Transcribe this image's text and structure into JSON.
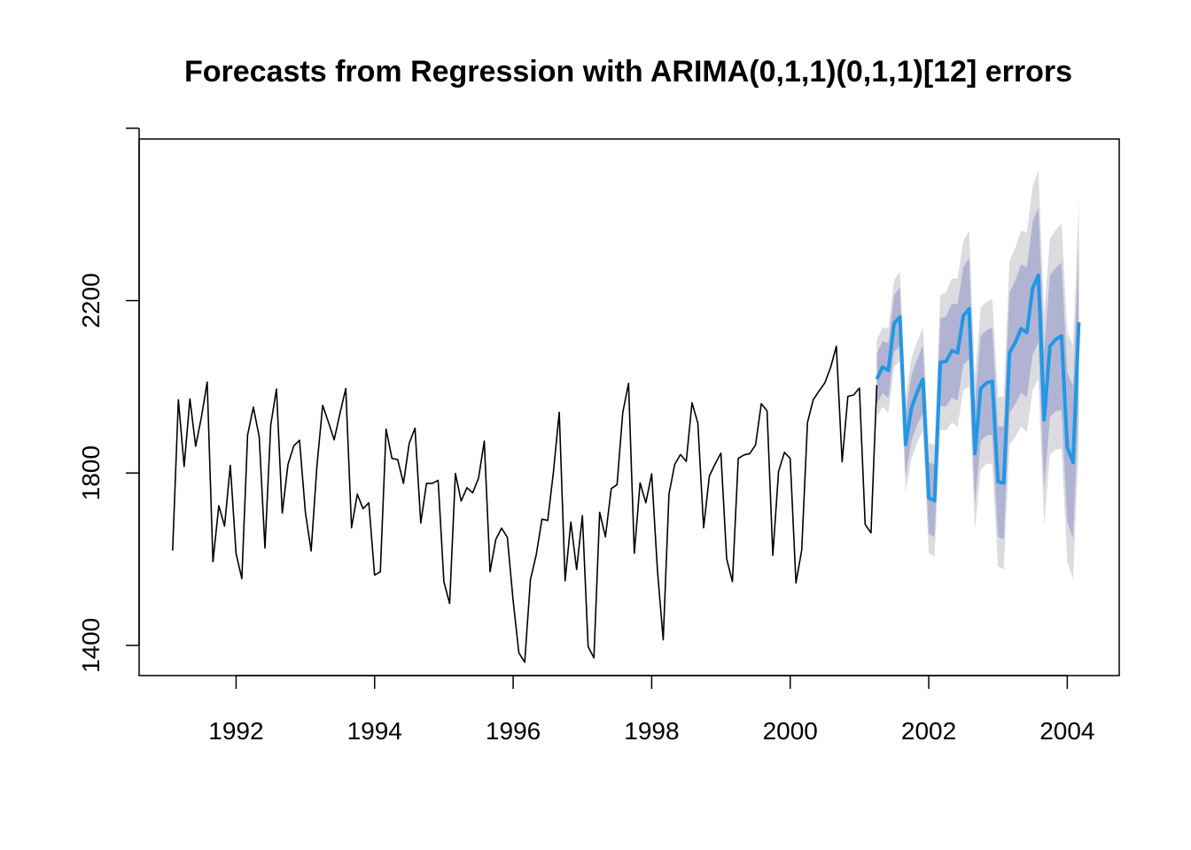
{
  "chart_data": {
    "type": "line",
    "title": "Forecasts from Regression with ARIMA(0,1,1)(0,1,1)[12] errors",
    "xlabel": "",
    "ylabel": "",
    "xlim": [
      1990.6,
      2004.75
    ],
    "ylim": [
      1330,
      2575
    ],
    "x_ticks": [
      1992,
      1994,
      1996,
      1998,
      2000,
      2002,
      2004
    ],
    "y_ticks": [
      1400,
      1800,
      2200,
      2600
    ],
    "y_tick_labels_shown": [
      "1400",
      "1800",
      "2200"
    ],
    "grid": false,
    "legend": "none",
    "colors": {
      "history": "#000000",
      "forecast": "#2297e6",
      "interval_95": "#dbdbe0",
      "interval_80": "#b0b4d2"
    },
    "history": {
      "start": 1991.083,
      "step": 0.08333,
      "values": [
        1620,
        1970,
        1815,
        1972,
        1862,
        1930,
        2011,
        1594,
        1724,
        1677,
        1818,
        1613,
        1555,
        1888,
        1953,
        1884,
        1626,
        1911,
        1995,
        1707,
        1820,
        1863,
        1876,
        1709,
        1619,
        1815,
        1957,
        1918,
        1877,
        1938,
        1996,
        1673,
        1751,
        1717,
        1731,
        1563,
        1571,
        1902,
        1834,
        1831,
        1776,
        1869,
        1904,
        1684,
        1776,
        1776,
        1783,
        1548,
        1497,
        1799,
        1735,
        1766,
        1754,
        1788,
        1874,
        1571,
        1646,
        1672,
        1651,
        1505,
        1383,
        1361,
        1553,
        1610,
        1693,
        1690,
        1804,
        1941,
        1550,
        1686,
        1576,
        1701,
        1397,
        1371,
        1709,
        1652,
        1764,
        1773,
        1941,
        2008,
        1614,
        1777,
        1731,
        1798,
        1574,
        1413,
        1751,
        1820,
        1843,
        1827,
        1963,
        1916,
        1673,
        1793,
        1821,
        1846,
        1601,
        1548,
        1834,
        1842,
        1845,
        1865,
        1961,
        1944,
        1609,
        1804,
        1848,
        1834,
        1545,
        1621,
        1917,
        1970,
        1990,
        2009,
        2045,
        2094,
        1826,
        1978,
        1981,
        1997,
        1681,
        1661,
        2004
      ]
    },
    "forecast": {
      "start": 2001.25,
      "step": 0.08333,
      "mean": [
        2018,
        2046,
        2038,
        2147,
        2162,
        1866,
        1950,
        1988,
        2018,
        1742,
        1736,
        2057,
        2059,
        2084,
        2079,
        2165,
        2181,
        1845,
        1996,
        2009,
        2013,
        1780,
        1777,
        2079,
        2103,
        2135,
        2126,
        2229,
        2259,
        1924,
        2094,
        2110,
        2118,
        1859,
        1825,
        2150
      ],
      "lo80": [
        1960,
        1986,
        1974,
        2081,
        2094,
        1794,
        1874,
        1912,
        1940,
        1659,
        1651,
        1955,
        1955,
        1975,
        1968,
        2052,
        2064,
        1728,
        1874,
        1887,
        1888,
        1652,
        1646,
        1940,
        1960,
        1987,
        1975,
        2075,
        2102,
        1764,
        1930,
        1943,
        1947,
        1685,
        1649,
        1965
      ],
      "hi80": [
        2077,
        2106,
        2102,
        2213,
        2230,
        1938,
        2026,
        2064,
        2097,
        1825,
        1820,
        2159,
        2163,
        2193,
        2191,
        2278,
        2298,
        1961,
        2118,
        2131,
        2138,
        1908,
        1908,
        2219,
        2246,
        2284,
        2277,
        2383,
        2416,
        2083,
        2258,
        2276,
        2288,
        2033,
        2002,
        2335
      ],
      "lo95": [
        1928,
        1954,
        1940,
        2047,
        2058,
        1756,
        1833,
        1871,
        1898,
        1615,
        1606,
        1900,
        1899,
        1917,
        1908,
        1992,
        2001,
        1667,
        1808,
        1821,
        1822,
        1584,
        1576,
        1866,
        1884,
        1908,
        1895,
        1993,
        2018,
        1680,
        1843,
        1854,
        1857,
        1593,
        1555,
        1867
      ],
      "hi95": [
        2109,
        2138,
        2136,
        2248,
        2267,
        1976,
        2067,
        2105,
        2138,
        1869,
        1866,
        2213,
        2219,
        2251,
        2251,
        2338,
        2362,
        2023,
        2184,
        2197,
        2204,
        1976,
        1978,
        2292,
        2322,
        2363,
        2357,
        2465,
        2501,
        2168,
        2345,
        2364,
        2379,
        2126,
        2095,
        2433
      ]
    }
  }
}
